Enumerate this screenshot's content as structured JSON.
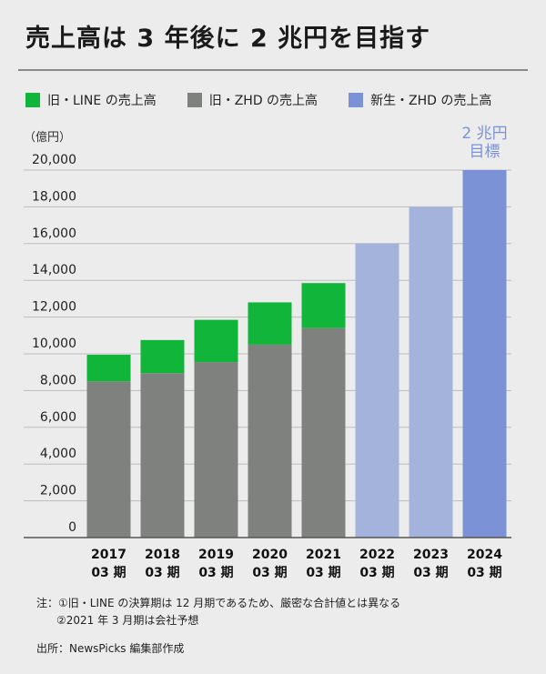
{
  "title": "売上高は 3 年後に 2 兆円を目指す",
  "colors": {
    "old_line": "#10b53a",
    "old_zhd": "#7e817e",
    "new_zhd_forecast": "#a4b3dc",
    "new_zhd_target": "#7b93d6",
    "background": "#ececec"
  },
  "legend": [
    {
      "label": "旧・LINE の売上高",
      "color": "#10b53a"
    },
    {
      "label": "旧・ZHD の売上高",
      "color": "#7e817e"
    },
    {
      "label": "新生・ZHD の売上高",
      "color": "#7b93d6"
    }
  ],
  "notes": [
    "注：①旧・LINE の決算期は 12 月期であるため、厳密な合計値とは異なる",
    "②2021 年 3 月期は会社予想"
  ],
  "source": "出所：NewsPicks 編集部作成",
  "chart_data": {
    "type": "bar",
    "stacked": true,
    "title": "売上高は 3 年後に 2 兆円を目指す",
    "ylabel": "（億円）",
    "xlabel": "",
    "ylim": [
      0,
      20000
    ],
    "yticks": [
      0,
      2000,
      4000,
      6000,
      8000,
      10000,
      12000,
      14000,
      16000,
      18000,
      20000
    ],
    "ytick_labels": [
      "0",
      "2,000",
      "4,000",
      "6,000",
      "8,000",
      "10,000",
      "12,000",
      "14,000",
      "16,000",
      "18,000",
      "20,000"
    ],
    "categories": [
      "2017\n03 期",
      "2018\n03 期",
      "2019\n03 期",
      "2020\n03 期",
      "2021\n03 期",
      "2022\n03 期",
      "2023\n03 期",
      "2024\n03 期"
    ],
    "category_lines": [
      [
        "2017",
        "03 期"
      ],
      [
        "2018",
        "03 期"
      ],
      [
        "2019",
        "03 期"
      ],
      [
        "2020",
        "03 期"
      ],
      [
        "2021",
        "03 期"
      ],
      [
        "2022",
        "03 期"
      ],
      [
        "2023",
        "03 期"
      ],
      [
        "2024",
        "03 期"
      ]
    ],
    "grid": true,
    "legend_position": "top",
    "series": [
      {
        "name": "旧・ZHD の売上高",
        "color": "#7e817e",
        "values": [
          8500,
          8950,
          9550,
          10500,
          11400,
          null,
          null,
          null
        ]
      },
      {
        "name": "旧・LINE の売上高",
        "color": "#10b53a",
        "values": [
          1450,
          1800,
          2300,
          2300,
          2450,
          null,
          null,
          null
        ]
      },
      {
        "name": "新生・ZHD の売上高",
        "color": "#a4b3dc",
        "values": [
          null,
          null,
          null,
          null,
          null,
          16000,
          18000,
          20000
        ],
        "highlight_color": "#7b93d6",
        "highlight_index": 7
      }
    ],
    "annotations": [
      {
        "category_index": 7,
        "lines": [
          "2 兆円",
          "目標"
        ],
        "color": "#7b93d6"
      }
    ]
  }
}
